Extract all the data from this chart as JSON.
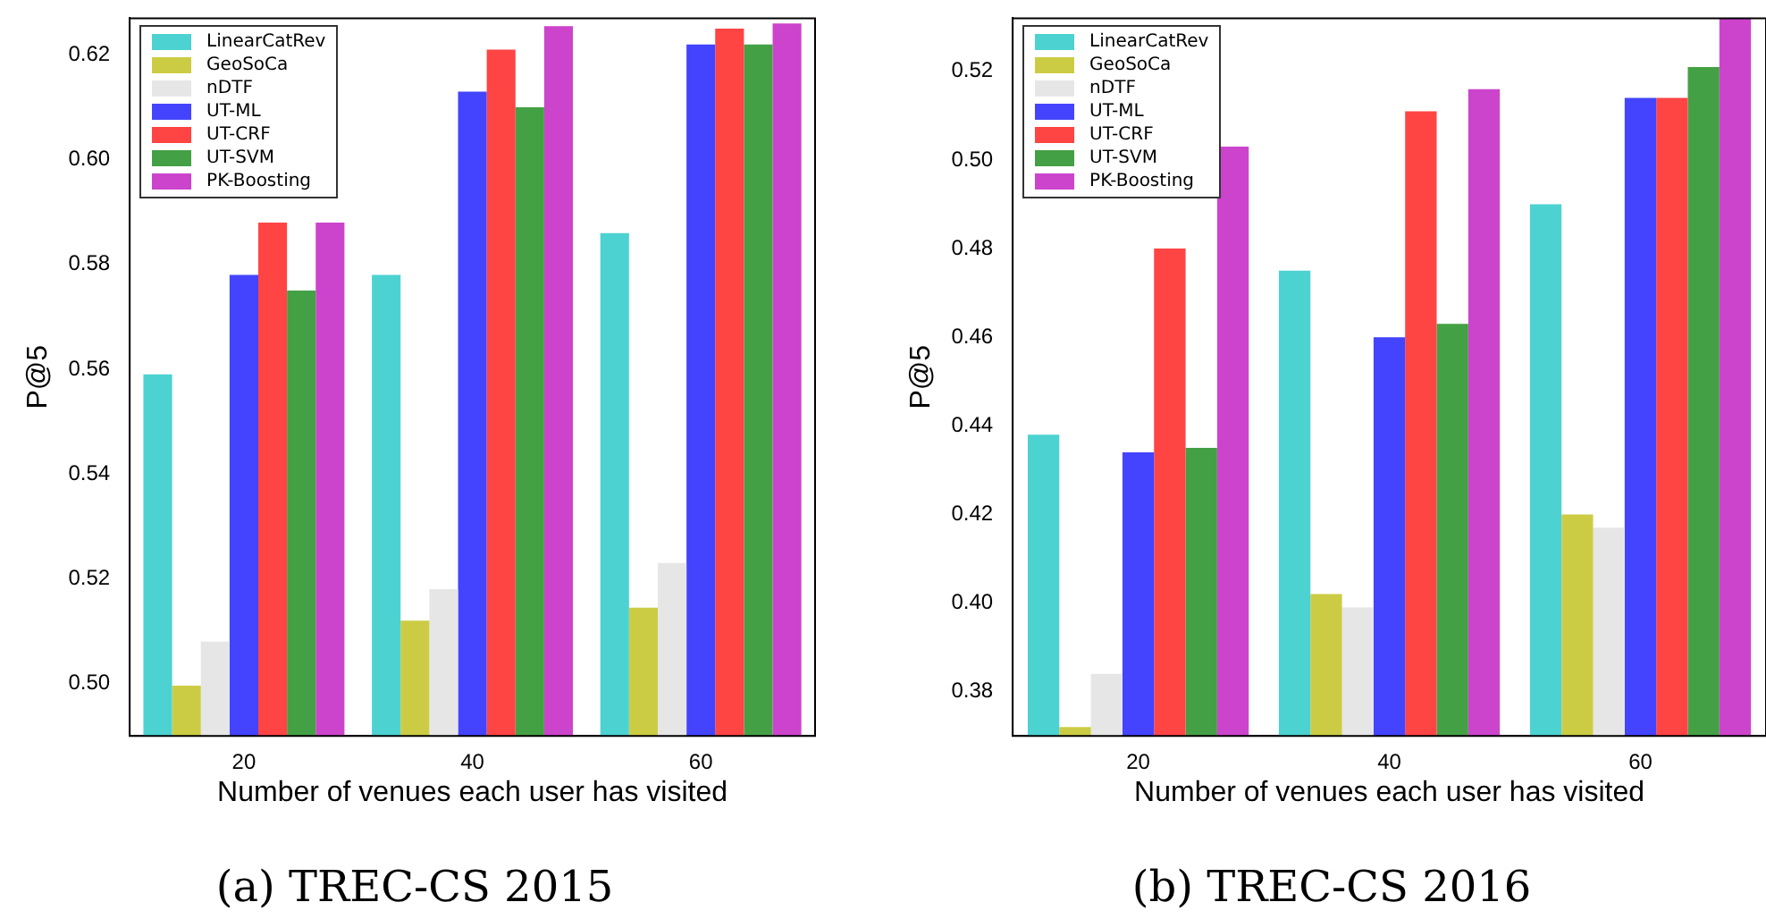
{
  "chart_data": [
    {
      "type": "bar",
      "title": "(a) TREC-CS 2015",
      "xlabel": "Number of venues each user has visited",
      "ylabel": "P@5",
      "categories": [
        "20",
        "40",
        "60"
      ],
      "ylim": [
        0.49,
        0.627
      ],
      "yticks": [
        {
          "value": 0.5,
          "label": "0.50"
        },
        0.52,
        0.54,
        0.56,
        0.58,
        {
          "value": 0.6,
          "label": "0.60"
        },
        0.62
      ],
      "grid": false,
      "legend": "top left",
      "series": [
        {
          "name": "LinearCatRev",
          "color": "#4dd2d2",
          "values": [
            0.559,
            0.578,
            0.586
          ]
        },
        {
          "name": "GeoSoCa",
          "color": "#cccc44",
          "values": [
            0.4996,
            0.512,
            0.5145
          ]
        },
        {
          "name": "nDTF",
          "color": "#e6e6e6",
          "values": [
            0.508,
            0.518,
            0.523
          ]
        },
        {
          "name": "UT-ML",
          "color": "#4444ff",
          "values": [
            0.578,
            0.613,
            0.622
          ]
        },
        {
          "name": "UT-CRF",
          "color": "#ff4444",
          "values": [
            0.588,
            0.621,
            0.625
          ]
        },
        {
          "name": "UT-SVM",
          "color": "#44a044",
          "values": [
            0.575,
            0.61,
            0.622
          ]
        },
        {
          "name": "PK-Boosting",
          "color": "#cc44cc",
          "values": [
            0.588,
            0.6255,
            0.626
          ]
        }
      ]
    },
    {
      "type": "bar",
      "title": "(b) TREC-CS 2016",
      "xlabel": "Number of venues each user has visited",
      "ylabel": "P@5",
      "categories": [
        "20",
        "40",
        "60"
      ],
      "ylim": [
        0.37,
        0.532
      ],
      "yticks": [
        0.38,
        {
          "value": 0.4,
          "label": "0.40"
        },
        0.42,
        0.44,
        0.46,
        0.48,
        {
          "value": 0.5,
          "label": "0.50"
        },
        0.52
      ],
      "grid": false,
      "legend": "top left",
      "series": [
        {
          "name": "LinearCatRev",
          "color": "#4dd2d2",
          "values": [
            0.438,
            0.475,
            0.49
          ]
        },
        {
          "name": "GeoSoCa",
          "color": "#cccc44",
          "values": [
            0.372,
            0.402,
            0.42
          ]
        },
        {
          "name": "nDTF",
          "color": "#e6e6e6",
          "values": [
            0.384,
            0.399,
            0.417
          ]
        },
        {
          "name": "UT-ML",
          "color": "#4444ff",
          "values": [
            0.434,
            0.46,
            0.514
          ]
        },
        {
          "name": "UT-CRF",
          "color": "#ff4444",
          "values": [
            0.48,
            0.511,
            0.514
          ]
        },
        {
          "name": "UT-SVM",
          "color": "#44a044",
          "values": [
            0.435,
            0.463,
            0.521
          ]
        },
        {
          "name": "PK-Boosting",
          "color": "#cc44cc",
          "values": [
            0.503,
            0.516,
            0.532
          ]
        }
      ]
    }
  ]
}
